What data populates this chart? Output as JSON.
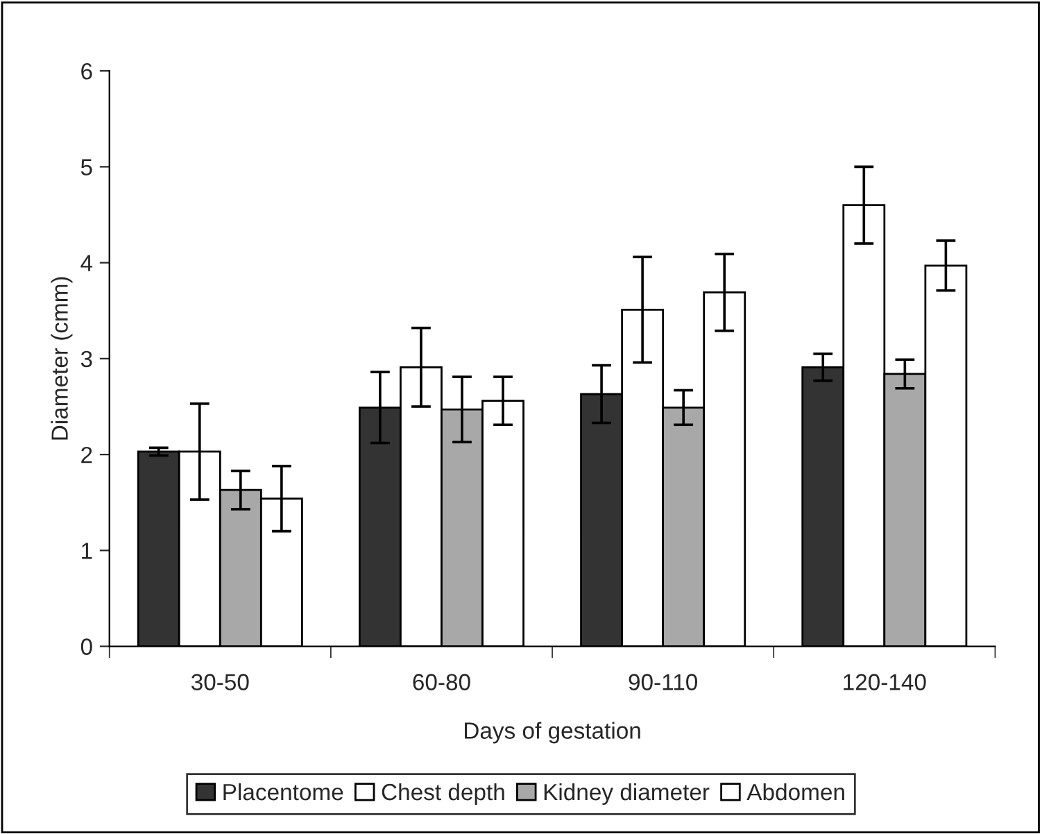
{
  "chart_data": {
    "type": "bar",
    "xlabel": "Days of gestation",
    "ylabel": "Diameter (cmm)",
    "categories": [
      "30-50",
      "60-80",
      "90-110",
      "120-140"
    ],
    "series": [
      {
        "name": "Placentome",
        "color": "#333333",
        "values": [
          2.03,
          2.49,
          2.63,
          2.91
        ],
        "errors": [
          0.04,
          0.37,
          0.3,
          0.14
        ]
      },
      {
        "name": "Chest depth",
        "color": "#ffffff",
        "values": [
          2.03,
          2.91,
          3.51,
          4.6
        ],
        "errors": [
          0.5,
          0.41,
          0.55,
          0.4
        ]
      },
      {
        "name": "Kidney diameter",
        "color": "#a8a8a8",
        "values": [
          1.63,
          2.47,
          2.49,
          2.84
        ],
        "errors": [
          0.2,
          0.34,
          0.18,
          0.15
        ]
      },
      {
        "name": "Abdomen",
        "color": "#ffffff",
        "values": [
          1.54,
          2.56,
          3.69,
          3.97
        ],
        "errors": [
          0.34,
          0.25,
          0.4,
          0.26
        ]
      }
    ],
    "ylim": [
      0,
      6
    ],
    "yticks": [
      0,
      1,
      2,
      3,
      4,
      5,
      6
    ],
    "grid": false,
    "legend": "bottom"
  }
}
